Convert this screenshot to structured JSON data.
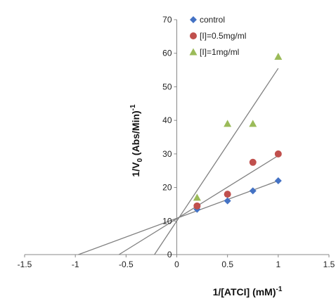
{
  "chart_data": {
    "type": "scatter",
    "title": "",
    "xlabel": "1/[ATCI] (mM)",
    "xlabel_sup": "-1",
    "ylabel": "1/V",
    "ylabel_sub": "0",
    "ylabel_rest": " (Abs/Min)",
    "ylabel_sup": "-1",
    "xlim": [
      -1.5,
      1.5
    ],
    "ylim": [
      0,
      70
    ],
    "x_ticks": [
      -1.5,
      -1,
      -0.5,
      0,
      0.5,
      1,
      1.5
    ],
    "x_tick_labels": [
      "-1.5",
      "-1",
      "-0.5",
      "0",
      "0.5",
      "1",
      "1.5"
    ],
    "y_ticks": [
      0,
      10,
      20,
      30,
      40,
      50,
      60,
      70
    ],
    "y_tick_labels": [
      "0",
      "10",
      "20",
      "30",
      "40",
      "50",
      "60",
      "70"
    ],
    "grid": false,
    "legend_position": "top",
    "series": [
      {
        "name": "control",
        "marker": "diamond",
        "color": "#4472c4",
        "x": [
          0.2,
          0.5,
          0.75,
          1.0
        ],
        "y": [
          13.5,
          16,
          19,
          22
        ],
        "trendline": {
          "x_from": -0.97,
          "x_to": 1.0,
          "y_from": 0,
          "y_to": 22
        }
      },
      {
        "name": "[I]=0.5mg/ml",
        "marker": "circle",
        "color": "#c0504d",
        "x": [
          0.2,
          0.5,
          0.75,
          1.0
        ],
        "y": [
          14.5,
          18,
          27.5,
          30
        ],
        "trendline": {
          "x_from": -0.57,
          "x_to": 1.0,
          "y_from": 0,
          "y_to": 29.5
        }
      },
      {
        "name": "[I]=1mg/ml",
        "marker": "triangle",
        "color": "#9bbb59",
        "x": [
          0.2,
          0.5,
          0.75,
          1.0
        ],
        "y": [
          17,
          39,
          39,
          59
        ],
        "trendline": {
          "x_from": -0.22,
          "x_to": 1.0,
          "y_from": 0,
          "y_to": 55.5
        }
      }
    ],
    "trendline_color": "#808080"
  }
}
